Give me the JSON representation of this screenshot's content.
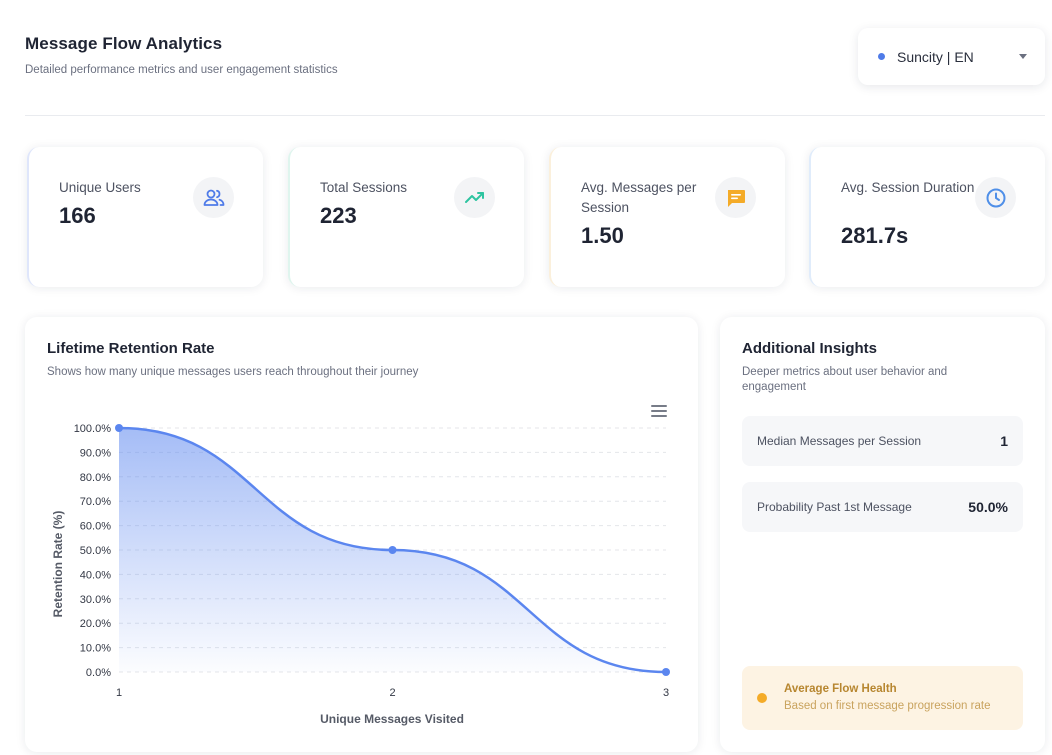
{
  "header": {
    "title": "Message Flow Analytics",
    "subtitle": "Detailed performance metrics and user engagement statistics"
  },
  "language_select": {
    "value": "Suncity | EN",
    "dot_color": "#4f7be8"
  },
  "stats": [
    {
      "label": "Unique Users",
      "value": "166",
      "icon": "users-icon",
      "icon_color": "#4f7be8"
    },
    {
      "label": "Total Sessions",
      "value": "223",
      "icon": "trending-up-icon",
      "icon_color": "#2ec4a0"
    },
    {
      "label": "Avg. Messages per Session",
      "value": "1.50",
      "icon": "message-icon",
      "icon_color": "#f4ab28"
    },
    {
      "label": "Avg. Session Duration",
      "value": "281.7s",
      "icon": "clock-icon",
      "icon_color": "#4f8fe8"
    }
  ],
  "retention": {
    "title": "Lifetime Retention Rate",
    "subtitle": "Shows how many unique messages users reach throughout their journey"
  },
  "chart_data": {
    "type": "area",
    "x": [
      1,
      2,
      3
    ],
    "series": [
      {
        "values": [
          100.0,
          50.0,
          0.0
        ]
      }
    ],
    "xlabel": "Unique Messages Visited",
    "ylabel": "Retention Rate (%)",
    "ylim": [
      0,
      100
    ],
    "y_ticks": [
      "0.0%",
      "10.0%",
      "20.0%",
      "30.0%",
      "40.0%",
      "50.0%",
      "60.0%",
      "70.0%",
      "80.0%",
      "90.0%",
      "100.0%"
    ],
    "x_ticks": [
      "1",
      "2",
      "3"
    ],
    "grid": true,
    "line_color": "#5b86ef"
  },
  "insights": {
    "title": "Additional Insights",
    "subtitle": "Deeper metrics about user behavior and engagement",
    "metrics": [
      {
        "label": "Median Messages per Session",
        "value": "1"
      },
      {
        "label": "Probability Past 1st Message",
        "value": "50.0%"
      }
    ],
    "health": {
      "title": "Average Flow Health",
      "subtitle": "Based on first message progression rate"
    }
  }
}
